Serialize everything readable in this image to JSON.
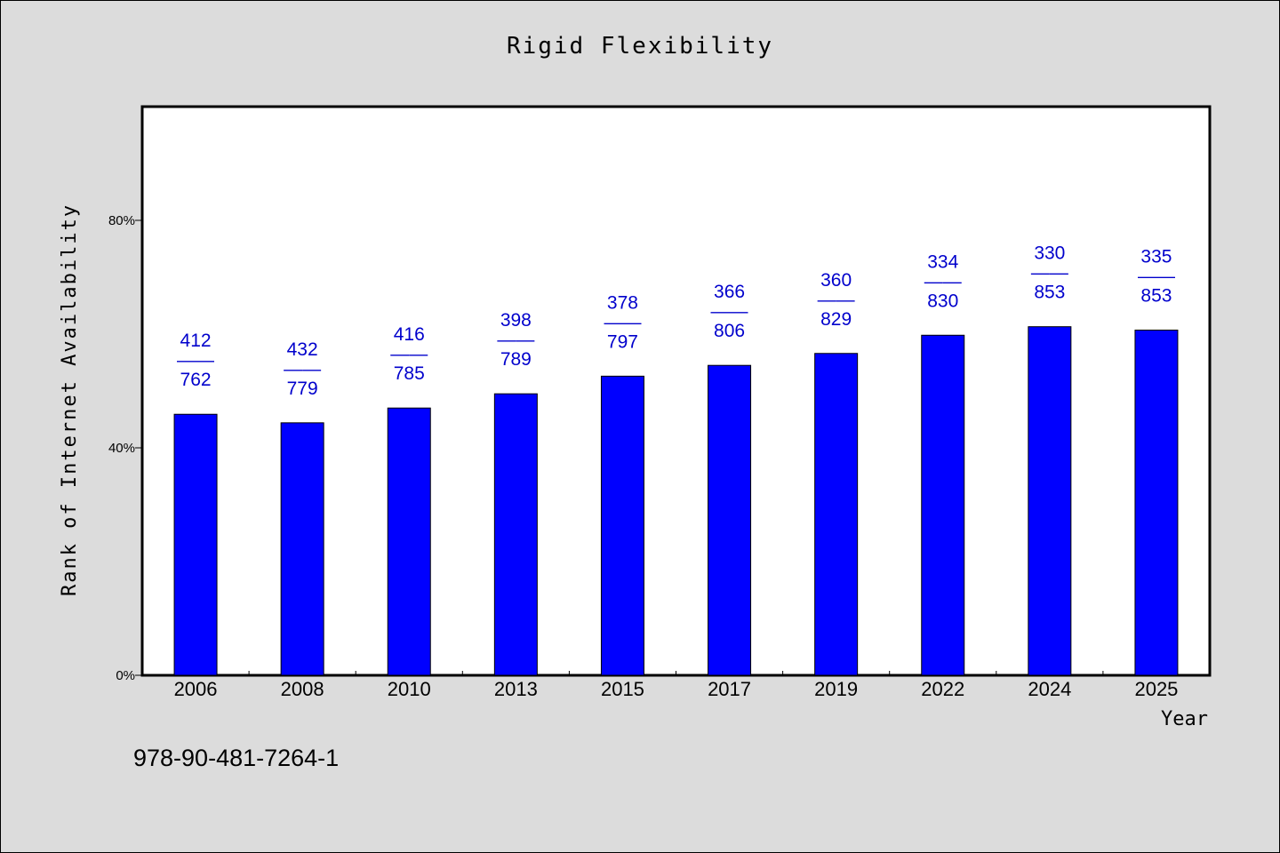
{
  "chart_data": {
    "type": "bar",
    "title": "Rigid Flexibility",
    "xlabel": "Year",
    "ylabel": "Rank of Internet Availability",
    "ylim": [
      0,
      100
    ],
    "yticks": [
      {
        "value": 0,
        "label": "0%"
      },
      {
        "value": 40,
        "label": "40%"
      },
      {
        "value": 80,
        "label": "80%"
      }
    ],
    "categories": [
      "2006",
      "2008",
      "2010",
      "2013",
      "2015",
      "2017",
      "2019",
      "2022",
      "2024",
      "2025"
    ],
    "values": [
      45.9,
      44.4,
      47.0,
      49.5,
      52.6,
      54.5,
      56.6,
      59.8,
      61.3,
      60.7
    ],
    "labels": [
      {
        "top": "412",
        "sep": "——",
        "bottom": "762"
      },
      {
        "top": "432",
        "sep": "——",
        "bottom": "779"
      },
      {
        "top": "416",
        "sep": "——",
        "bottom": "785"
      },
      {
        "top": "398",
        "sep": "——",
        "bottom": "789"
      },
      {
        "top": "378",
        "sep": "——",
        "bottom": "797"
      },
      {
        "top": "366",
        "sep": "——",
        "bottom": "806"
      },
      {
        "top": "360",
        "sep": "——",
        "bottom": "829"
      },
      {
        "top": "334",
        "sep": "——",
        "bottom": "830"
      },
      {
        "top": "330",
        "sep": "——",
        "bottom": "853"
      },
      {
        "top": "335",
        "sep": "——",
        "bottom": "853"
      }
    ],
    "bar_color": "#0000ff",
    "label_color": "#0000cc",
    "grid": false,
    "legend": "none"
  },
  "footer": {
    "isbn": "978-90-481-7264-1"
  }
}
